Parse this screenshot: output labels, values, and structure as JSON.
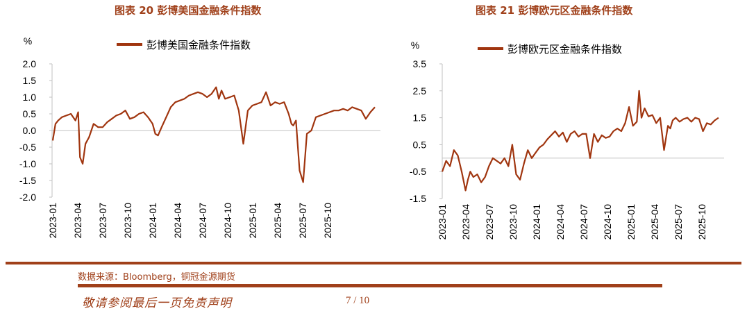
{
  "page": {
    "source": "数据来源：Bloomberg，铜冠金源期货",
    "disclaimer": "敬请参阅最后一页免责声明",
    "page_number": "7 / 10"
  },
  "colors": {
    "line": "#a0350f",
    "accent": "#a0401a",
    "axis": "#c0c0c0"
  },
  "chart_data": [
    {
      "type": "line",
      "title": "图表 20  彭博美国金融条件指数",
      "ylabel": "%",
      "ylim": [
        -2.0,
        2.0
      ],
      "yticks": [
        2.0,
        1.5,
        1.0,
        0.5,
        0.0,
        -0.5,
        -1.0,
        -1.5,
        -2.0
      ],
      "ytick_labels": [
        "2.0",
        "1.5",
        "1.0",
        "0.5",
        "0.0",
        "-0.5",
        "-1.0",
        "-1.5",
        "-2.0"
      ],
      "xtick_labels": [
        "2023-01",
        "2023-04",
        "2023-07",
        "2023-10",
        "2024-01",
        "2024-04",
        "2024-07",
        "2024-10",
        "2025-01",
        "2025-04",
        "2025-07",
        "2025-10"
      ],
      "legend": {
        "position": "top",
        "entries": [
          "彭博美国金融条件指数"
        ]
      },
      "grid": false,
      "series": [
        {
          "name": "彭博美国金融条件指数",
          "x": [
            0,
            0.3,
            0.6,
            1.0,
            1.5,
            2.0,
            2.5,
            2.8,
            3.0,
            3.3,
            3.6,
            4.0,
            4.5,
            5.0,
            5.5,
            6.0,
            6.5,
            7.0,
            7.5,
            8.0,
            8.5,
            9.0,
            9.5,
            10.0,
            10.5,
            11.0,
            11.3,
            11.6,
            12.0,
            12.5,
            13.0,
            13.5,
            14.0,
            14.5,
            15.0,
            15.5,
            16.0,
            16.5,
            17.0,
            17.5,
            18.0,
            18.3,
            18.6,
            19.0,
            19.5,
            20.0,
            20.5,
            21.0,
            21.5,
            22.0,
            22.5,
            23.0,
            23.5,
            24.0,
            24.5,
            25.0,
            25.5,
            26.0,
            26.3,
            26.5,
            26.8,
            27.2,
            27.6,
            28.0,
            28.5,
            29.0,
            29.5,
            30.0,
            30.5,
            31.0,
            31.5,
            32.0,
            32.5,
            33.0,
            33.5,
            34.0,
            34.5,
            35.0,
            35.5
          ],
          "values": [
            -0.3,
            0.2,
            0.3,
            0.4,
            0.45,
            0.5,
            0.3,
            0.55,
            -0.8,
            -1.0,
            -0.4,
            -0.2,
            0.2,
            0.1,
            0.1,
            0.25,
            0.35,
            0.45,
            0.5,
            0.6,
            0.35,
            0.4,
            0.5,
            0.55,
            0.4,
            0.2,
            -0.1,
            -0.15,
            0.1,
            0.4,
            0.7,
            0.85,
            0.9,
            0.95,
            1.05,
            1.1,
            1.15,
            1.1,
            1.0,
            1.1,
            1.3,
            0.95,
            1.2,
            0.95,
            1.0,
            1.05,
            0.6,
            -0.4,
            0.6,
            0.75,
            0.8,
            0.85,
            1.15,
            0.75,
            0.85,
            0.8,
            0.85,
            0.5,
            0.2,
            0.15,
            0.3,
            -1.2,
            -1.55,
            -0.1,
            0.0,
            0.4,
            0.45,
            0.5,
            0.55,
            0.6,
            0.6,
            0.65,
            0.6,
            0.7,
            0.65,
            0.6,
            0.35,
            0.55,
            0.7
          ]
        }
      ]
    },
    {
      "type": "line",
      "title": "图表 21  彭博欧元区金融条件指数",
      "ylabel": "%",
      "ylim": [
        -1.5,
        3.5
      ],
      "yticks": [
        3.5,
        2.5,
        1.5,
        0.5,
        -0.5,
        -1.5
      ],
      "ytick_labels": [
        "3.5",
        "2.5",
        "1.5",
        "0.5",
        "-0.5",
        "-1.5"
      ],
      "xtick_labels": [
        "2023-01",
        "2023-04",
        "2023-07",
        "2023-10",
        "2024-01",
        "2024-04",
        "2024-07",
        "2024-10",
        "2025-01",
        "2025-04",
        "2025-07",
        "2025-10"
      ],
      "legend": {
        "position": "top",
        "entries": [
          "彭博欧元区金融条件指数"
        ]
      },
      "grid": false,
      "series": [
        {
          "name": "彭博欧元区金融条件指数",
          "x": [
            0,
            0.5,
            1.0,
            1.5,
            2.0,
            2.5,
            3.0,
            3.3,
            3.6,
            4.0,
            4.5,
            5.0,
            5.5,
            6.0,
            6.5,
            7.0,
            7.5,
            8.0,
            8.5,
            9.0,
            9.5,
            10.0,
            10.5,
            11.0,
            11.5,
            12.0,
            12.5,
            13.0,
            13.5,
            14.0,
            14.5,
            15.0,
            15.5,
            16.0,
            16.5,
            17.0,
            17.5,
            18.0,
            18.5,
            19.0,
            19.5,
            20.0,
            20.5,
            21.0,
            21.5,
            22.0,
            22.5,
            23.0,
            23.5,
            24.0,
            24.5,
            25.0,
            25.3,
            25.6,
            26.0,
            26.5,
            27.0,
            27.5,
            28.0,
            28.5,
            29.0,
            29.3,
            29.6,
            30.0,
            30.5,
            31.0,
            31.5,
            32.0,
            32.5,
            33.0,
            33.5,
            34.0,
            34.5,
            35.0,
            35.5
          ],
          "values": [
            -0.5,
            -0.1,
            -0.3,
            0.3,
            0.1,
            -0.5,
            -1.2,
            -0.8,
            -0.5,
            -0.7,
            -0.6,
            -0.9,
            -0.7,
            -0.3,
            0.0,
            -0.1,
            -0.2,
            0.0,
            -0.3,
            0.5,
            -0.6,
            -0.8,
            -0.2,
            0.3,
            0.0,
            0.2,
            0.4,
            0.5,
            0.7,
            0.85,
            1.0,
            0.8,
            0.95,
            0.6,
            0.9,
            1.0,
            0.8,
            0.9,
            0.9,
            0.0,
            0.9,
            0.6,
            0.85,
            0.75,
            0.8,
            1.0,
            1.1,
            1.0,
            1.3,
            1.9,
            1.2,
            1.35,
            2.5,
            1.5,
            1.85,
            1.55,
            1.6,
            1.3,
            1.5,
            0.3,
            1.2,
            1.1,
            1.4,
            1.5,
            1.35,
            1.45,
            1.5,
            1.35,
            1.5,
            1.45,
            1.0,
            1.3,
            1.25,
            1.4,
            1.5
          ]
        }
      ]
    }
  ]
}
